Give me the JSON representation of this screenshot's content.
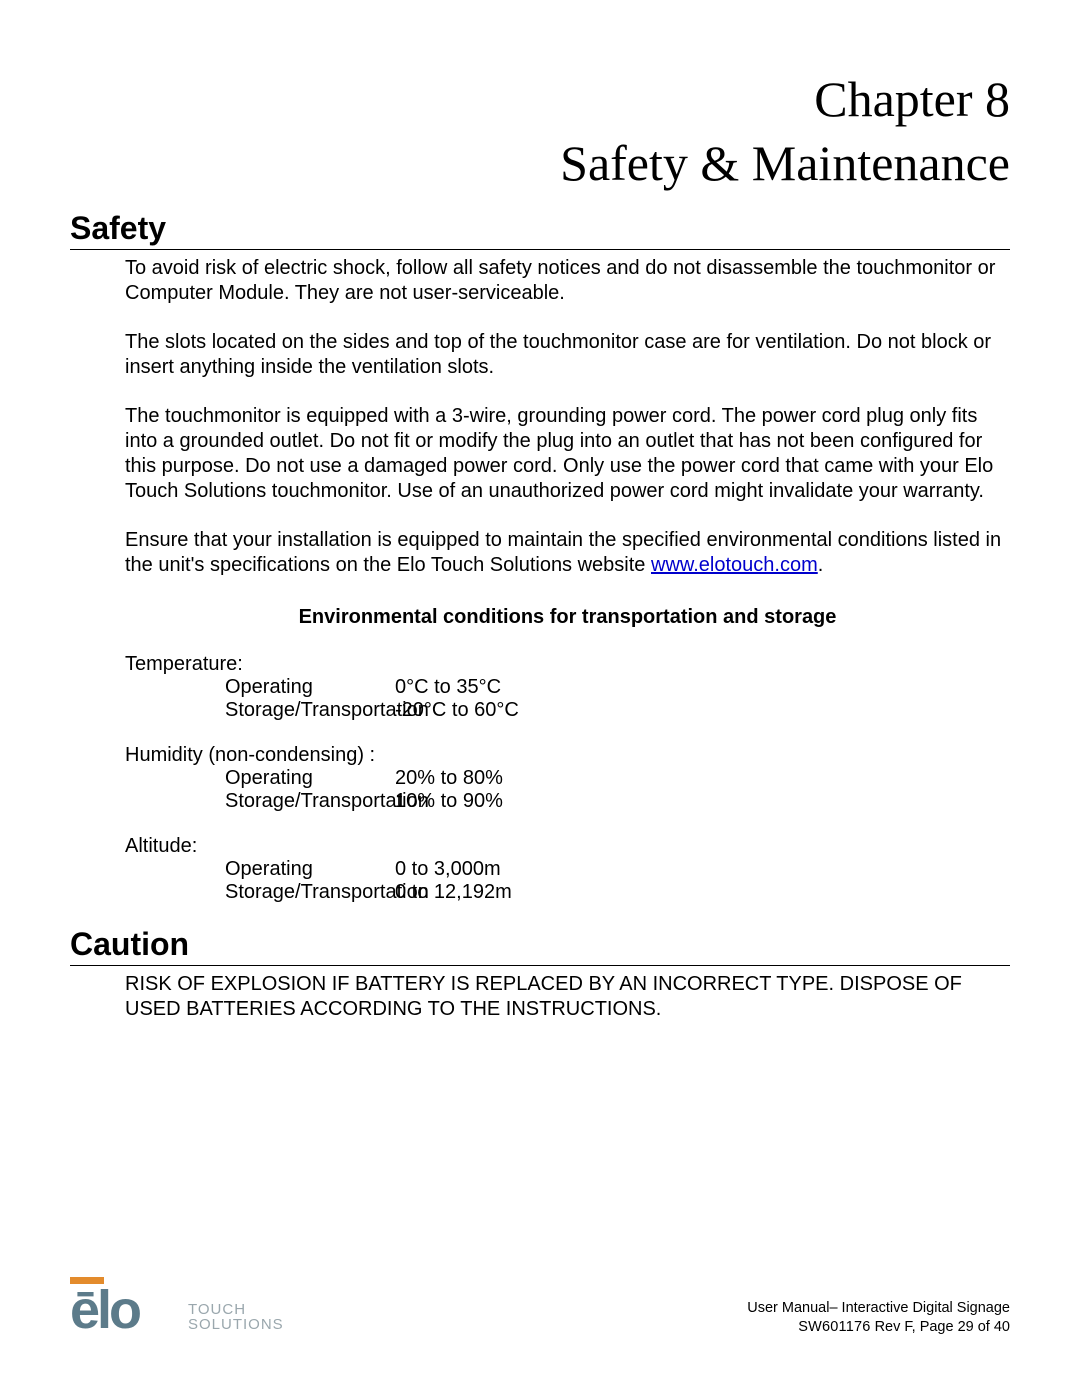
{
  "chapter": {
    "title": "Chapter 8",
    "subtitle": "Safety & Maintenance"
  },
  "sections": {
    "safety": {
      "heading": "Safety",
      "p1": "To avoid risk of electric shock, follow all safety notices and do not disassemble the touchmonitor or Computer Module.   They are not user-serviceable.",
      "p2": "The slots located on the sides and top of the touchmonitor case are for ventilation. Do not block or insert anything inside the ventilation slots.",
      "p3": "The touchmonitor is equipped with a 3-wire, grounding power cord.   The power cord plug only fits into a grounded outlet.   Do not fit or modify the plug into an outlet that has not been configured for this purpose.   Do not use a damaged power cord.   Only use the power cord that came with your Elo Touch Solutions touchmonitor.   Use of an unauthorized power cord might invalidate your warranty.",
      "p4_pre": "Ensure that your installation is equipped to maintain the specified environmental conditions listed in the unit's specifications on the Elo Touch Solutions website ",
      "p4_link": "www.elotouch.com",
      "p4_post": "."
    },
    "env": {
      "heading": "Environmental conditions for transportation and storage",
      "temp_label": "Temperature:",
      "temp_op_label": "Operating",
      "temp_op_value": "0°C to 35°C",
      "temp_st_label": "Storage/Transportation",
      "temp_st_value": "-20°C to 60°C",
      "hum_label": "Humidity (non-condensing) :",
      "hum_op_label": "Operating",
      "hum_op_value": "20% to 80%",
      "hum_st_label": "Storage/Transportation",
      "hum_st_value": "10% to 90%",
      "alt_label": "Altitude:",
      "alt_op_label": "Operating",
      "alt_op_value": "0 to 3,000m",
      "alt_st_label": "Storage/Transportation",
      "alt_st_value": "0 to 12,192m"
    },
    "caution": {
      "heading": "Caution",
      "p1": "RISK OF EXPLOSION IF BATTERY IS REPLACED BY AN INCORRECT TYPE. DISPOSE OF USED BATTERIES ACCORDING TO THE INSTRUCTIONS."
    }
  },
  "footer": {
    "logo_main": "ēlo",
    "logo_sub1": "TOUCH",
    "logo_sub2": "SOLUTIONS",
    "line1": "User Manual– Interactive Digital Signage",
    "line2_a": "SW601176",
    "line2_b": " Rev F, Page 29 of 40"
  },
  "colors": {
    "link": "#0000cc",
    "logo_accent": "#e38b2c",
    "logo_text": "#5c7b8a",
    "logo_sub": "#9aa7ad"
  }
}
